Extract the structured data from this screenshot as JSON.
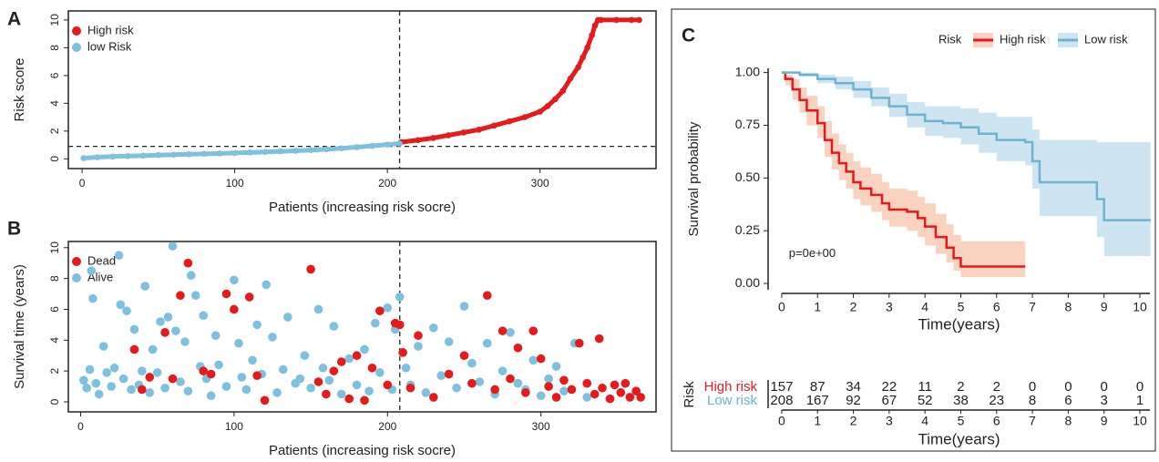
{
  "chart_data": [
    {
      "panel": "A",
      "type": "line",
      "ylabel": "Risk score",
      "xlabel": "Patients (increasing risk socre)",
      "xlim": [
        -9,
        376
      ],
      "ylim": [
        -0.7,
        10.65
      ],
      "xticks": [
        0,
        100,
        200,
        300
      ],
      "yticks": [
        0,
        2,
        4,
        6,
        8,
        10
      ],
      "cutoff_x": 208,
      "cutoff_y": 0.9,
      "legend": "top-left",
      "series": [
        {
          "name": "High risk",
          "color": "#e41a1c",
          "x": [
            209,
            220,
            230,
            240,
            250,
            260,
            270,
            280,
            290,
            300,
            305,
            310,
            315,
            320,
            325,
            328,
            331,
            334,
            336,
            338,
            340,
            350,
            360,
            365
          ],
          "values": [
            1.2,
            1.35,
            1.5,
            1.7,
            1.9,
            2.1,
            2.4,
            2.7,
            3.0,
            3.4,
            3.8,
            4.3,
            4.9,
            5.8,
            6.6,
            7.3,
            8.0,
            8.9,
            9.6,
            10,
            10,
            10,
            10,
            10
          ]
        },
        {
          "name": "low Risk",
          "color": "#7ec0de",
          "x": [
            1,
            10,
            20,
            30,
            40,
            50,
            60,
            70,
            80,
            90,
            100,
            110,
            120,
            130,
            140,
            150,
            160,
            170,
            180,
            190,
            200,
            208
          ],
          "values": [
            0.05,
            0.12,
            0.17,
            0.2,
            0.23,
            0.27,
            0.3,
            0.33,
            0.36,
            0.39,
            0.42,
            0.46,
            0.5,
            0.54,
            0.58,
            0.63,
            0.69,
            0.76,
            0.84,
            0.93,
            1.03,
            1.1
          ]
        }
      ]
    },
    {
      "panel": "B",
      "type": "scatter",
      "ylabel": "Survival time (years)",
      "xlabel": "Patients (increasing risk socre)",
      "xlim": [
        -8,
        375
      ],
      "ylim": [
        -0.65,
        10.4
      ],
      "xticks": [
        0,
        100,
        200,
        300
      ],
      "yticks": [
        0,
        2,
        4,
        6,
        8,
        10
      ],
      "cutoff_x": 208,
      "legend": "top-left",
      "series": [
        {
          "name": "Dead",
          "color": "#e41a1c",
          "x": [
            35,
            40,
            45,
            55,
            60,
            65,
            70,
            80,
            85,
            95,
            100,
            110,
            115,
            120,
            150,
            155,
            160,
            165,
            170,
            175,
            180,
            185,
            190,
            195,
            200,
            205,
            208,
            210,
            215,
            220,
            230,
            240,
            250,
            255,
            265,
            270,
            275,
            280,
            285,
            290,
            295,
            300,
            305,
            310,
            315,
            320,
            325,
            330,
            335,
            338,
            340,
            345,
            348,
            352,
            355,
            358,
            362,
            365
          ],
          "values": [
            3.4,
            0.8,
            1.6,
            4.5,
            1.5,
            6.9,
            9.0,
            2.0,
            1.8,
            7.0,
            6.0,
            6.8,
            1.7,
            0.1,
            8.6,
            1.3,
            0.5,
            2.0,
            2.6,
            0.2,
            3.0,
            0.1,
            2.2,
            5.9,
            1.1,
            5.1,
            5.0,
            3.2,
            0.9,
            4.3,
            0.3,
            1.8,
            3.0,
            1.2,
            6.9,
            0.8,
            4.6,
            1.5,
            3.5,
            0.6,
            4.6,
            2.8,
            1.0,
            0.3,
            1.4,
            0.8,
            3.8,
            1.2,
            0.5,
            4.1,
            0.9,
            0.2,
            1.1,
            0.6,
            1.2,
            0.3,
            0.7,
            0.3
          ]
        },
        {
          "name": "Alive",
          "color": "#7ec0de",
          "x": [
            2,
            4,
            6,
            7,
            8,
            10,
            12,
            15,
            17,
            20,
            22,
            25,
            26,
            28,
            30,
            33,
            35,
            38,
            40,
            42,
            45,
            47,
            50,
            52,
            55,
            57,
            60,
            62,
            65,
            68,
            70,
            72,
            75,
            78,
            80,
            82,
            85,
            88,
            90,
            95,
            100,
            103,
            105,
            108,
            112,
            115,
            118,
            121,
            125,
            128,
            132,
            135,
            140,
            143,
            146,
            150,
            155,
            158,
            162,
            165,
            170,
            175,
            180,
            185,
            188,
            192,
            195,
            200,
            203,
            205,
            208,
            212,
            215,
            220,
            225,
            230,
            235,
            240,
            245,
            250,
            255,
            260,
            265,
            270,
            275,
            280,
            285,
            290,
            295,
            300,
            305,
            310,
            315,
            322,
            330
          ],
          "values": [
            1.4,
            0.9,
            2.1,
            8.5,
            6.7,
            1.2,
            0.5,
            3.6,
            1.9,
            1.0,
            2.2,
            9.5,
            6.3,
            1.5,
            5.9,
            0.8,
            4.7,
            1.1,
            2.0,
            7.5,
            0.6,
            3.4,
            1.9,
            5.2,
            0.9,
            5.5,
            10.1,
            4.6,
            1.3,
            3.9,
            0.7,
            8.2,
            6.9,
            2.3,
            5.6,
            1.5,
            0.4,
            4.3,
            2.4,
            1.0,
            7.9,
            3.8,
            1.6,
            0.8,
            2.7,
            5.0,
            1.8,
            7.6,
            4.2,
            0.6,
            2.1,
            5.5,
            1.2,
            1.5,
            3.0,
            0.9,
            6.0,
            2.2,
            1.4,
            4.9,
            0.5,
            2.8,
            1.1,
            3.4,
            0.7,
            5.1,
            1.9,
            6.1,
            0.8,
            4.7,
            6.8,
            2.2,
            1.1,
            3.6,
            0.6,
            4.8,
            1.7,
            3.9,
            0.9,
            6.2,
            2.5,
            1.3,
            3.8,
            0.5,
            2.0,
            4.5,
            1.2,
            0.8,
            2.7,
            0.4,
            1.5,
            2.3,
            0.7,
            3.8,
            0.3
          ]
        }
      ]
    },
    {
      "panel": "C",
      "type": "km",
      "ylabel": "Survival probability",
      "xlabel": "Time(years)",
      "legend_title": "Risk",
      "pvalue": "p=0e+00",
      "xlim": [
        -0.38,
        10.28
      ],
      "ylim": [
        -0.03,
        1.02
      ],
      "xticks": [
        0,
        1,
        2,
        3,
        4,
        5,
        6,
        7,
        8,
        9,
        10
      ],
      "yticks": [
        {
          "value": 0,
          "label": "0.00"
        },
        {
          "value": 0.25,
          "label": "0.25"
        },
        {
          "value": 0.5,
          "label": "0.50"
        },
        {
          "value": 0.75,
          "label": "0.75"
        },
        {
          "value": 1,
          "label": "1.00"
        }
      ],
      "series": [
        {
          "name": "High risk",
          "color": "#e41a1c",
          "ci_color": "#f4a582",
          "x": [
            0,
            0.1,
            0.3,
            0.5,
            0.7,
            1.0,
            1.2,
            1.4,
            1.6,
            1.8,
            2.0,
            2.2,
            2.5,
            2.8,
            3.0,
            3.5,
            3.8,
            4.0,
            4.3,
            4.6,
            4.8,
            5.0,
            6.8
          ],
          "values": [
            1.0,
            0.97,
            0.92,
            0.87,
            0.82,
            0.76,
            0.68,
            0.62,
            0.57,
            0.53,
            0.48,
            0.45,
            0.42,
            0.38,
            0.35,
            0.34,
            0.31,
            0.27,
            0.22,
            0.17,
            0.12,
            0.08,
            0.08
          ],
          "ci_lower": [
            1.0,
            0.94,
            0.87,
            0.81,
            0.75,
            0.69,
            0.6,
            0.54,
            0.49,
            0.45,
            0.4,
            0.37,
            0.34,
            0.3,
            0.27,
            0.25,
            0.22,
            0.18,
            0.14,
            0.1,
            0.06,
            0.03,
            0.02
          ],
          "ci_upper": [
            1.0,
            0.99,
            0.97,
            0.93,
            0.89,
            0.84,
            0.77,
            0.71,
            0.66,
            0.62,
            0.58,
            0.55,
            0.52,
            0.48,
            0.45,
            0.44,
            0.41,
            0.38,
            0.33,
            0.28,
            0.23,
            0.2,
            0.27
          ]
        },
        {
          "name": "Low risk",
          "color": "#6db3d0",
          "ci_color": "#9ecae1",
          "x": [
            0,
            0.5,
            1.0,
            1.5,
            2.0,
            2.5,
            3.0,
            3.5,
            4.0,
            4.5,
            5.0,
            5.5,
            6.0,
            6.8,
            7.0,
            7.2,
            8.5,
            8.8,
            9.0,
            10.3
          ],
          "values": [
            1.0,
            0.99,
            0.97,
            0.95,
            0.92,
            0.88,
            0.84,
            0.8,
            0.77,
            0.76,
            0.74,
            0.71,
            0.68,
            0.67,
            0.58,
            0.48,
            0.48,
            0.4,
            0.3,
            0.3
          ],
          "ci_lower": [
            1.0,
            0.98,
            0.95,
            0.92,
            0.88,
            0.84,
            0.79,
            0.74,
            0.7,
            0.69,
            0.66,
            0.62,
            0.58,
            0.56,
            0.45,
            0.32,
            0.32,
            0.22,
            0.13,
            0.13
          ],
          "ci_upper": [
            1.0,
            1.0,
            0.99,
            0.98,
            0.96,
            0.93,
            0.9,
            0.86,
            0.84,
            0.84,
            0.83,
            0.81,
            0.79,
            0.79,
            0.73,
            0.68,
            0.68,
            0.67,
            0.67,
            0.67
          ]
        }
      ],
      "risk_table": {
        "title": "Risk",
        "xlabel": "Time(years)",
        "times": [
          0,
          1,
          2,
          3,
          4,
          5,
          6,
          7,
          8,
          9,
          10
        ],
        "rows": [
          {
            "name": "High risk",
            "color": "#e41a1c",
            "values": [
              157,
              87,
              34,
              22,
              11,
              2,
              2,
              0,
              0,
              0,
              0
            ]
          },
          {
            "name": "Low risk",
            "color": "#6db3d0",
            "values": [
              208,
              167,
              92,
              67,
              52,
              38,
              23,
              8,
              6,
              3,
              1
            ]
          }
        ]
      }
    }
  ]
}
